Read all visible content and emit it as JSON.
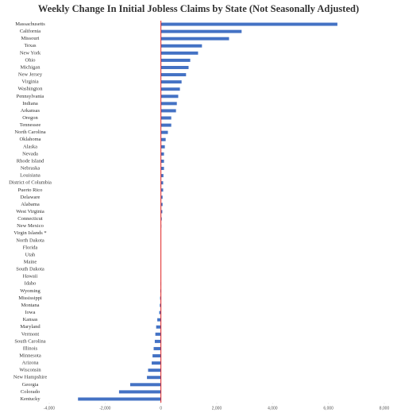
{
  "chart_data": {
    "type": "hbar",
    "title": "Weekly Change In Initial Jobless Claims by State (Not Seasonally Adjusted)",
    "categories": [
      "Massachusetts",
      "California",
      "Missouri",
      "Texas",
      "New York",
      "Ohio",
      "Michigan",
      "New Jersey",
      "Virginia",
      "Washington",
      "Pennsylvania",
      "Indiana",
      "Arkansas",
      "Oregon",
      "Tennessee",
      "North Carolina",
      "Oklahoma",
      "Alaska",
      "Nevada",
      "Rhode Island",
      "Nebraska",
      "Louisiana",
      "District of Columbia",
      "Puerto Rico",
      "Delaware",
      "Alabama",
      "West Virginia",
      "Connecticut",
      "New Mexico",
      "Virgin Islands *",
      "North Dakota",
      "Florida",
      "Utah",
      "Maine",
      "South Dakota",
      "Hawaii",
      "Idaho",
      "Wyoming",
      "Mississippi",
      "Montana",
      "Iowa",
      "Kansas",
      "Maryland",
      "Vermont",
      "South Carolina",
      "Illinois",
      "Minnesota",
      "Arizona",
      "Wisconsin",
      "New Hampshire",
      "Georgia",
      "Colorado",
      "Kentucky"
    ],
    "values": [
      6320,
      2890,
      2440,
      1470,
      1330,
      1050,
      990,
      900,
      740,
      680,
      620,
      570,
      540,
      370,
      370,
      250,
      170,
      140,
      110,
      110,
      110,
      90,
      80,
      80,
      60,
      60,
      50,
      30,
      15,
      5,
      0,
      0,
      0,
      0,
      0,
      -5,
      -10,
      -20,
      -30,
      -40,
      -60,
      -130,
      -170,
      -200,
      -220,
      -260,
      -300,
      -330,
      -460,
      -500,
      -1100,
      -1500,
      -2970
    ],
    "color": "#4472c4",
    "zero_line_color": "#e02020",
    "xlim": [
      -4000,
      8000
    ],
    "xticks": [
      {
        "value": -4000,
        "label": "-4,000"
      },
      {
        "value": -2000,
        "label": "-2,000"
      },
      0,
      {
        "value": 2000,
        "label": "2,000"
      },
      {
        "value": 4000,
        "label": "4,000"
      },
      {
        "value": 6000,
        "label": "6,000"
      },
      {
        "value": 8000,
        "label": "8,000"
      }
    ],
    "grid": false
  }
}
